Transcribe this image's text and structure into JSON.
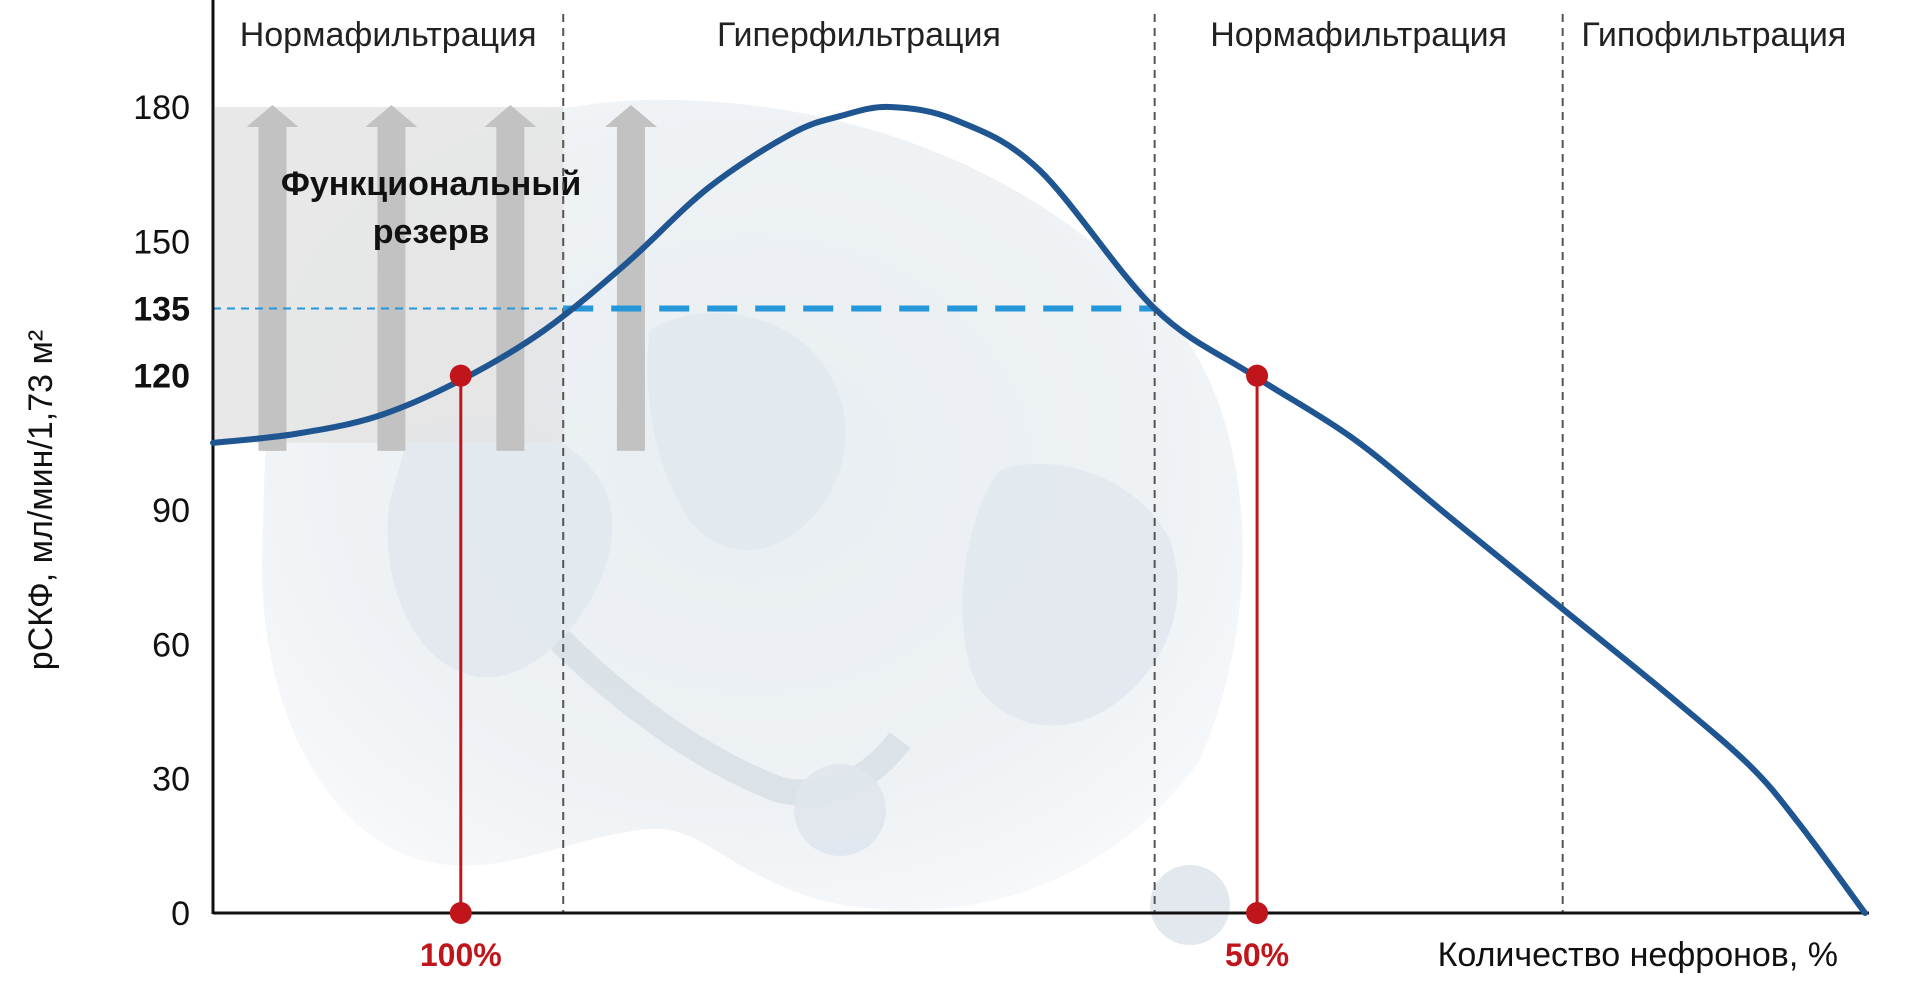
{
  "chart_data": {
    "type": "line",
    "ylabel": "рСКФ, мл/мин/1,73 м²",
    "xlabel": "Количество нефронов, %",
    "ylim": [
      0,
      180
    ],
    "yticks": [
      "0",
      "30",
      "60",
      "90",
      "150",
      "180"
    ],
    "highlight_ticks": [
      {
        "value": 135,
        "label": "135",
        "color": "#111111"
      },
      {
        "value": 120,
        "label": "120",
        "color": "#c0161b"
      }
    ],
    "regions": [
      {
        "label": "Нормафильтрация",
        "x_from": 0.0,
        "x_to": 0.212
      },
      {
        "label": "Гиперфильтрация",
        "x_from": 0.212,
        "x_to": 0.57
      },
      {
        "label": "Нормафильтрация",
        "x_from": 0.57,
        "x_to": 0.817
      },
      {
        "label": "Гипофильтрация",
        "x_from": 0.817,
        "x_to": 1.0
      }
    ],
    "curve": {
      "color": "#1f5591",
      "x": [
        0.0,
        0.05,
        0.1,
        0.15,
        0.2,
        0.25,
        0.3,
        0.35,
        0.38,
        0.41,
        0.45,
        0.5,
        0.57,
        0.63,
        0.69,
        0.75,
        0.82,
        0.88,
        0.93,
        0.96,
        1.0
      ],
      "y": [
        105,
        107,
        111,
        119,
        130,
        145,
        162,
        174,
        178,
        180,
        177,
        166,
        135,
        120,
        106,
        88,
        67,
        49,
        33,
        20,
        0
      ]
    },
    "reference_line": {
      "value": 135,
      "x_from": 0.0,
      "x_to": 0.57,
      "color": "#2596d8"
    },
    "markers": [
      {
        "x": 0.15,
        "y": 120,
        "label": "100%",
        "color": "#c0161b"
      },
      {
        "x": 0.632,
        "y": 120,
        "label": "50%",
        "color": "#c0161b"
      }
    ],
    "reserve": {
      "line1": "Функциональный",
      "line2": "резерв",
      "arrows_x": [
        0.036,
        0.108,
        0.18,
        0.253
      ],
      "band_top": 180
    },
    "grid": false
  }
}
